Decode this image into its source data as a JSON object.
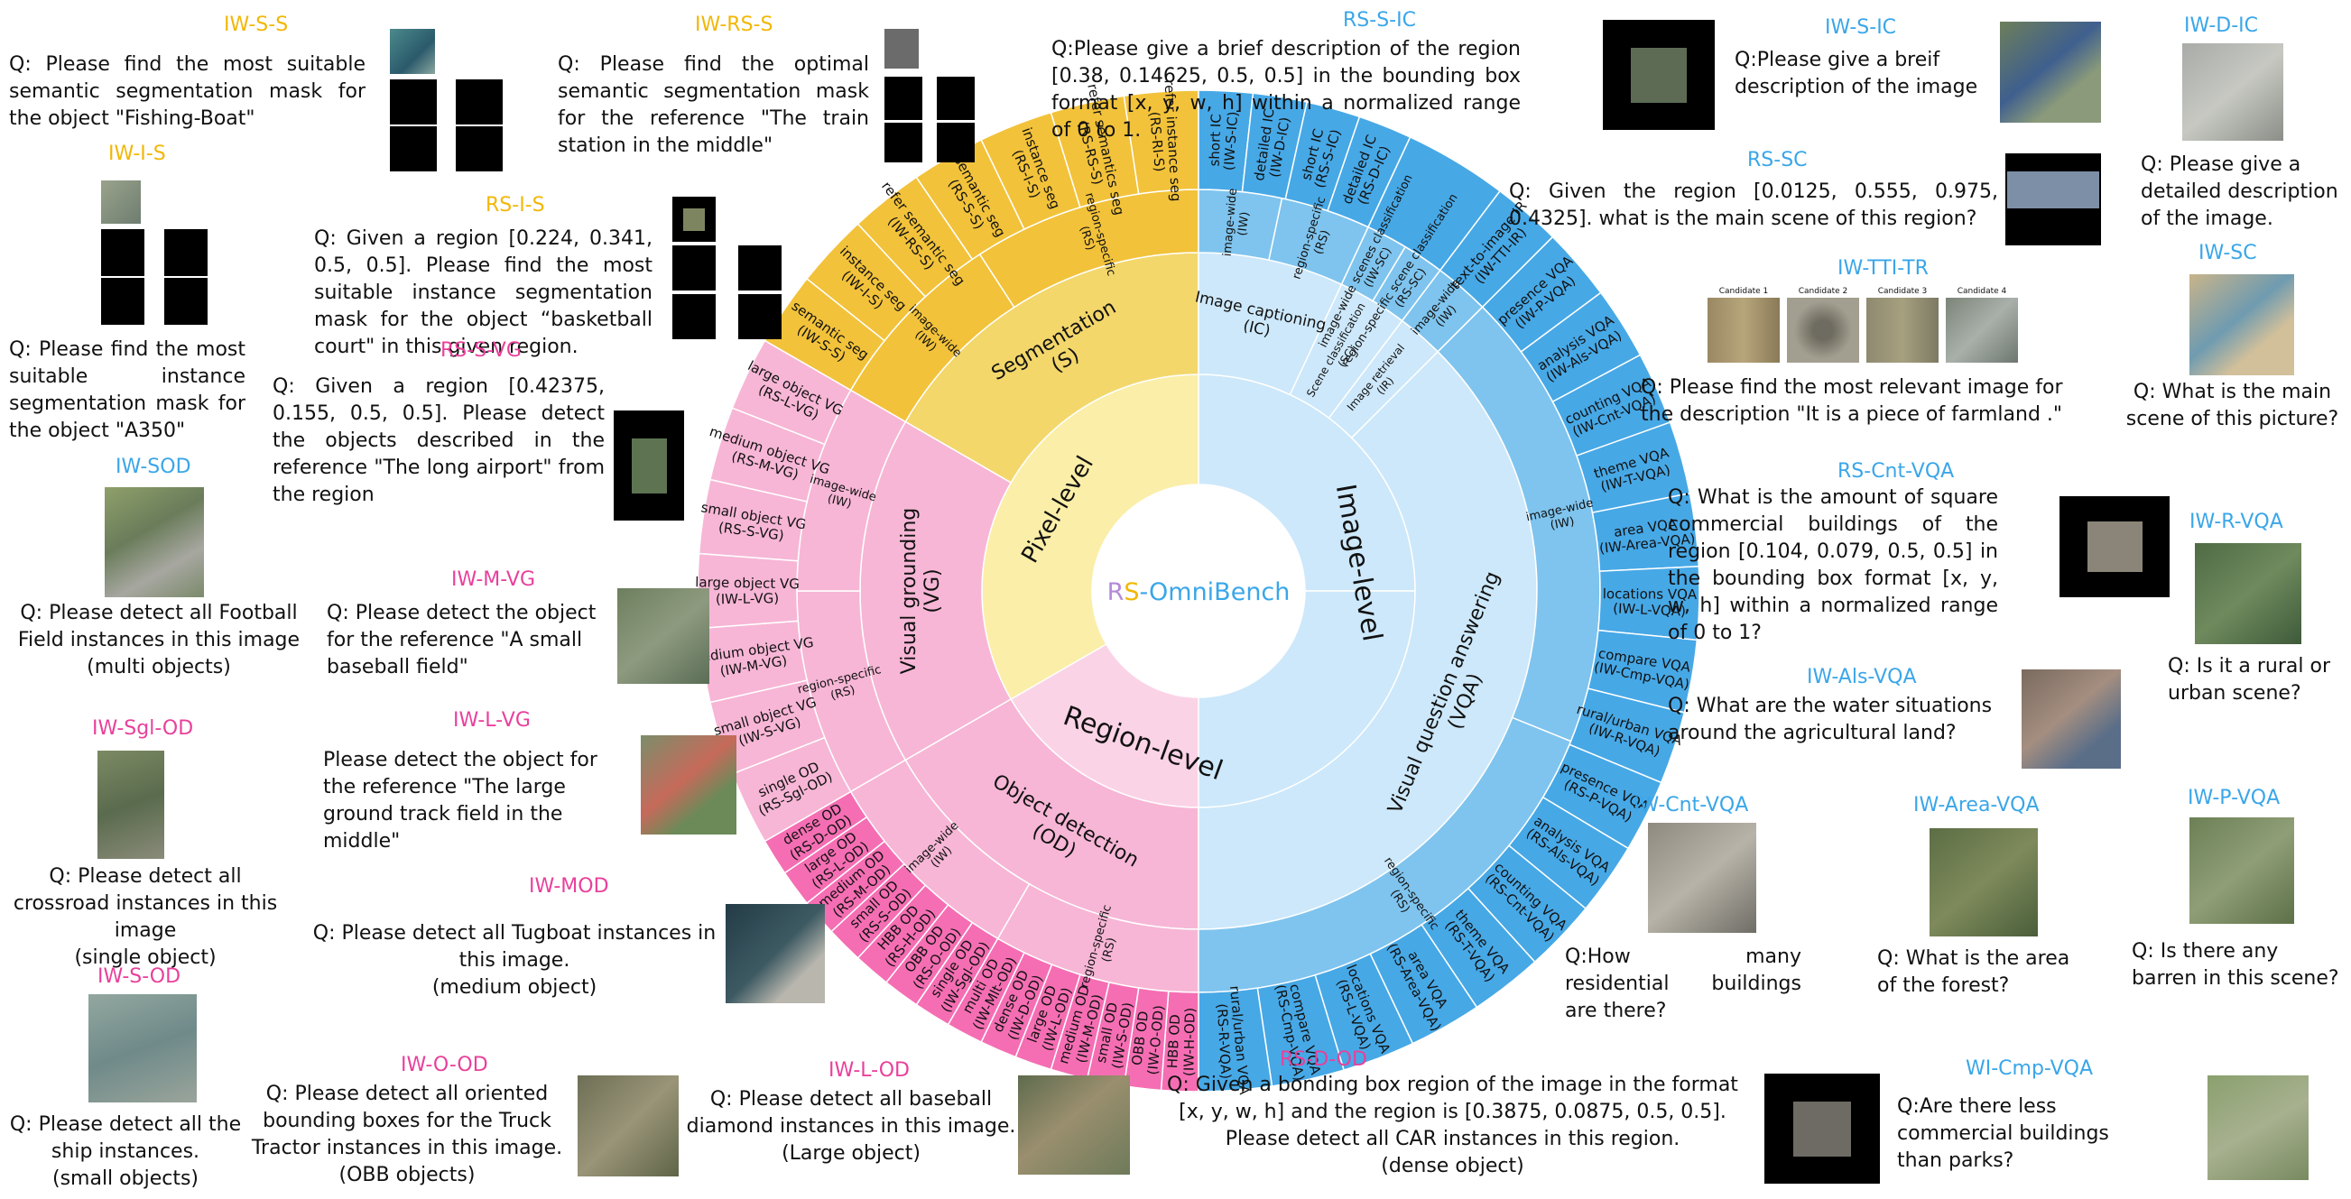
{
  "center": {
    "rs_r": "R",
    "rs_s": "S",
    "dash": "-",
    "name": "OmniBench"
  },
  "colors": {
    "pixel_ring": "#f3d76b",
    "pixel_light": "#fbeea8",
    "pixel_outer": "#f2c23a",
    "region_ring": "#f7b6d6",
    "region_light": "#fbd3e6",
    "region_outer": "#f56eb3",
    "image_ring": "#7fc4ee",
    "image_light": "#cde8fa",
    "image_outer": "#47a8e6",
    "tag_yellow": "#f2b705",
    "tag_pink": "#e9409b",
    "tag_blue": "#3aa6e8"
  },
  "levels": {
    "pixel": "Pixel-level",
    "region": "Region-level",
    "image": "Image-level"
  },
  "tasks": {
    "segmentation": "Segmentation (S)",
    "visual_grounding": "Visual grounding (VG)",
    "object_detection": "Object detection (OD)",
    "image_captioning": "Image captioning (IC)",
    "scene_classification": "Scene classification (SC)",
    "image_retrieval": "Image retrieval (IR)",
    "vqa": "Visual question answering (VQA)"
  },
  "scopes": {
    "seg_iw": "image-wide (IW)",
    "seg_rs": "region-specific (RS)",
    "vg_rs": "region-specific (RS)",
    "vg_iw": "image-wide (IW)",
    "od_rs": "region-specific (RS)",
    "od_iw": "image-wide (IW)",
    "ic_iw": "image-wide (IW)",
    "ic_rs": "region-specific (RS)",
    "sc_iw": "image-wide scenes classification (IW-SC)",
    "sc_rs": "region-specific scene classification (RS-SC)",
    "ir_iw": "image-wide (IW)",
    "vqa_iw": "image-wide (IW)",
    "vqa_rs": "region-specific (RS)"
  },
  "leaves": {
    "seg": [
      "semantic seg (IW-S-S)",
      "instance seg (IW-I-S)",
      "refer semantic seg (IW-RS-S)",
      "semantic seg (RS-S-S)",
      "instance seg (RS-I-S)",
      "refer semantics seg (RS-RS-S)",
      "refer instance seg (RS-RI-S)"
    ],
    "ic": [
      "short IC (IW-S-IC)",
      "detailed IC (IW-D-IC)",
      "short IC (RS-S-IC)",
      "detailed IC (RS-D-IC)"
    ],
    "ir": [
      "text-to-image IR (IW-TTI-IR)"
    ],
    "vqa": [
      "presence VQA (IW-P-VQA)",
      "analysis VQA (IW-Als-VQA)",
      "counting VQA (IW-Cnt-VQA)",
      "theme VQA (IW-T-VQA)",
      "area VQA (IW-Area-VQA)",
      "locations VQA (IW-L-VQA)",
      "compare VQA (IW-Cmp-VQA)",
      "rural/urban VQA (IW-R-VQA)",
      "presence VQA (RS-P-VQA)",
      "analysis VQA (RS-Als-VQA)",
      "counting VQA (RS-Cnt-VQA)",
      "theme VQA (RS-T-VQA)",
      "area VQA (RS-Area-VQA)",
      "locations VQA (RS-L-VQA)",
      "compare VQA (RS-Cmp-VQA)",
      "rural/urban VQA (RS-R-VQA)"
    ],
    "od": [
      "HBB OD (IW-H-OD)",
      "OBB OD (IW-O-OD)",
      "small OD (IW-S-OD)",
      "medium OD (IW-M-OD)",
      "large OD (IW-L-OD)",
      "dense OD (IW-D-OD)",
      "multi OD (IW-Mlt-OD)",
      "single OD (IW-Sgl-OD)",
      "OBB OD (RS-O-OD)",
      "HBB OD (RS-H-OD)",
      "small OD (RS-S-OD)",
      "medium OD (RS-M-OD)",
      "large OD (RS-L-OD)",
      "dense OD (RS-D-OD)"
    ],
    "vg": [
      "single OD (RS-Sgl-OD)",
      "small object VG (IW-S-VG)",
      "medium object VG (IW-M-VG)",
      "large object VG (IW-L-VG)",
      "small object VG (RS-S-VG)",
      "medium object VG (RS-M-VG)",
      "large object VG (RS-L-VG)"
    ]
  },
  "examples": {
    "iw_s_s": {
      "tag": "IW-S-S",
      "q": "Q: Please find the most suitable semantic segmentation mask for the object \"Fishing-Boat\""
    },
    "iw_i_s": {
      "tag": "IW-I-S",
      "q": "Q: Please find the most suitable instance segmentation mask for the object \"A350\""
    },
    "iw_rs_s": {
      "tag": "IW-RS-S",
      "q": "Q: Please find the optimal semantic segmentation mask for the reference \"The train station in the middle\""
    },
    "rs_i_s": {
      "tag": "RS-I-S",
      "q": "Q: Given a region [0.224, 0.341, 0.5, 0.5]. Please find the most suitable instance segmentation mask for the object “basketball court\" in this given region."
    },
    "rs_s_vg": {
      "tag": "RS-S-VG",
      "q": "Q: Given a region [0.42375, 0.155, 0.5, 0.5]. Please detect the objects described in the reference \"The long airport\" from the region"
    },
    "iw_sod": {
      "tag": "IW-SOD",
      "q": "Q: Please detect all Football Field instances in this image",
      "sub": "(multi objects)"
    },
    "iw_m_vg": {
      "tag": "IW-M-VG",
      "q": "Q: Please detect the object for the reference \"A small baseball field\""
    },
    "iw_l_vg": {
      "tag": "IW-L-VG",
      "q": "Please detect the object for the reference \"The large ground track field in the middle\""
    },
    "iw_sgl_od": {
      "tag": "IW-Sgl-OD",
      "q": "Q: Please detect all crossroad instances in this image",
      "sub": "(single object)"
    },
    "iw_mod": {
      "tag": "IW-MOD",
      "q": "Q: Please detect all Tugboat instances in this image.",
      "sub": "(medium object)"
    },
    "iw_s_od": {
      "tag": "IW-S-OD",
      "q": "Q: Please detect all the ship instances.",
      "sub": "(small objects)"
    },
    "iw_o_od": {
      "tag": "IW-O-OD",
      "q": "Q: Please detect all oriented bounding boxes for the Truck Tractor instances in this image.",
      "sub": "(OBB objects)"
    },
    "iw_l_od": {
      "tag": "IW-L-OD",
      "q": "Q: Please detect all baseball diamond instances in this image.",
      "sub": "(Large object)"
    },
    "rs_d_od": {
      "tag": "RS-D-OD",
      "q": "Q: Given a bonding box region of the image in the format [x, y, w, h] and the region is [0.3875, 0.0875, 0.5, 0.5]. Please detect all CAR instances in this region.",
      "sub": "(dense object)"
    },
    "wi_cmp_vqa": {
      "tag": "WI-Cmp-VQA",
      "q": "Q:Are there less commercial buildings than parks?"
    },
    "iw_area_vqa": {
      "tag": "IW-Area-VQA",
      "q": "Q: What is the area of the forest?"
    },
    "iw_cnt_vqa": {
      "tag": "IW-Cnt-VQA",
      "q": "Q:How many residential buildings are there?"
    },
    "iw_p_vqa": {
      "tag": "IW-P-VQA",
      "q": "Q: Is there any barren in this scene?"
    },
    "iw_als_vqa": {
      "tag": "IW-Als-VQA",
      "q": "Q: What are the water situations around the agricultural land?"
    },
    "iw_r_vqa": {
      "tag": "IW-R-VQA",
      "q": "Q: Is it a rural or urban scene?"
    },
    "rs_cnt_vqa": {
      "tag": "RS-Cnt-VQA",
      "q": "Q: What is the amount of square commercial buildings of the region [0.104, 0.079, 0.5, 0.5] in the bounding box format [x, y, w, h] within a normalized range of 0 to 1?"
    },
    "iw_tti_tr": {
      "tag": "IW-TTI-TR",
      "q": "Q: Please find the most relevant image for the description \"It is a piece of farmland .\"",
      "candidates": [
        "Candidate 1",
        "Candidate 2",
        "Candidate 3",
        "Candidate 4"
      ]
    },
    "iw_sc": {
      "tag": "IW-SC",
      "q": "Q: What is the main scene of this picture?"
    },
    "rs_sc": {
      "tag": "RS-SC",
      "q": "Q: Given the region [0.0125, 0.555, 0.975, 0.4325]. what is the main scene of this region?"
    },
    "rs_s_ic": {
      "tag": "RS-S-IC",
      "q": "Q:Please give a brief description of the region [0.38, 0.14625, 0.5, 0.5] in the bounding box format [x, y, w, h] within a normalized range of 0 to 1."
    },
    "iw_s_ic": {
      "tag": "IW-S-IC",
      "q": "Q:Please give a breif description of the image"
    },
    "iw_d_ic": {
      "tag": "IW-D-IC",
      "q": "Q: Please give a detailed description of the image."
    }
  }
}
